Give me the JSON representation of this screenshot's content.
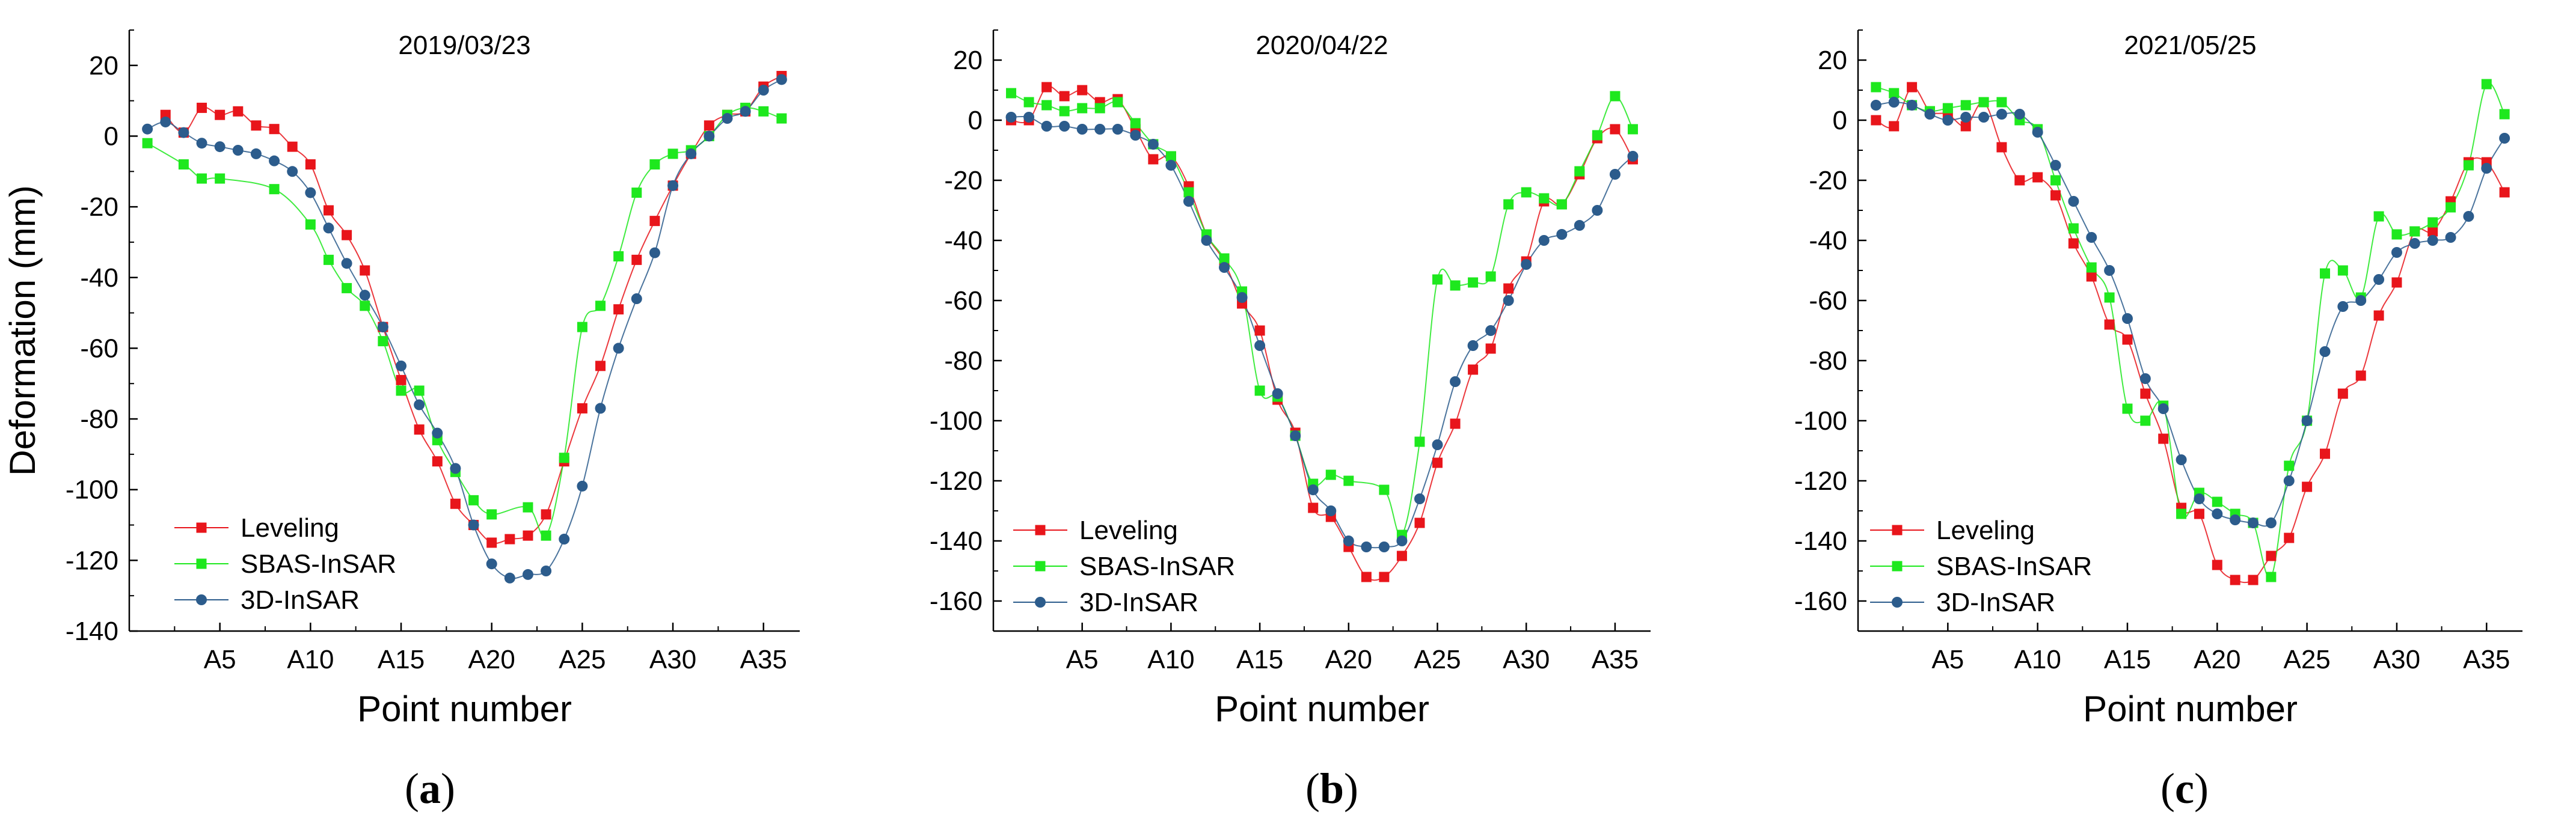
{
  "chart_data": [
    {
      "type": "line",
      "panel_label": "a",
      "title": "2019/03/23",
      "xlabel": "Point number",
      "ylabel": "Deformation (mm)",
      "xlim": [
        0,
        37
      ],
      "ylim": [
        -140,
        30
      ],
      "yticks": [
        20,
        0,
        -20,
        -40,
        -60,
        -80,
        -100,
        -120,
        -140
      ],
      "xticks": [
        5,
        10,
        15,
        20,
        25,
        30,
        35
      ],
      "xtick_labels": [
        "A5",
        "A10",
        "A15",
        "A20",
        "A25",
        "A30",
        "A35"
      ],
      "legend_position": "bottom-left",
      "series": [
        {
          "name": "Leveling",
          "color": "#e8151b",
          "marker": "square",
          "x": [
            2,
            3,
            4,
            5,
            6,
            7,
            8,
            9,
            10,
            11,
            12,
            13,
            14,
            15,
            16,
            17,
            18,
            19,
            20,
            21,
            22,
            23,
            24,
            25,
            26,
            27,
            28,
            29,
            30,
            31,
            32,
            33,
            34,
            35,
            36
          ],
          "values": [
            6,
            1,
            8,
            6,
            7,
            3,
            2,
            -3,
            -8,
            -21,
            -28,
            -38,
            -54,
            -69,
            -83,
            -92,
            -104,
            -110,
            -115,
            -114,
            -113,
            -107,
            -92,
            -77,
            -65,
            -49,
            -35,
            -24,
            -14,
            -5,
            3,
            6,
            7,
            14,
            17
          ]
        },
        {
          "name": "SBAS-InSAR",
          "color": "#1ee81e",
          "marker": "square",
          "x": [
            1,
            3,
            4,
            5,
            8,
            10,
            11,
            12,
            13,
            14,
            15,
            16,
            17,
            18,
            19,
            20,
            22,
            23,
            24,
            25,
            26,
            27,
            28,
            29,
            30,
            31,
            32,
            33,
            34,
            35,
            36
          ],
          "values": [
            -2,
            -8,
            -12,
            -12,
            -15,
            -25,
            -35,
            -43,
            -48,
            -58,
            -72,
            -72,
            -86,
            -95,
            -103,
            -107,
            -105,
            -113,
            -91,
            -54,
            -48,
            -34,
            -16,
            -8,
            -5,
            -4,
            0,
            6,
            8,
            7,
            5
          ]
        },
        {
          "name": "3D-InSAR",
          "color": "#2c5c8c",
          "marker": "circle",
          "x": [
            1,
            2,
            3,
            4,
            5,
            6,
            7,
            8,
            9,
            10,
            11,
            12,
            13,
            14,
            15,
            16,
            17,
            18,
            19,
            20,
            21,
            22,
            23,
            24,
            25,
            26,
            27,
            28,
            29,
            30,
            31,
            32,
            33,
            34,
            35,
            36
          ],
          "values": [
            2,
            4,
            1,
            -2,
            -3,
            -4,
            -5,
            -7,
            -10,
            -16,
            -26,
            -36,
            -45,
            -54,
            -65,
            -76,
            -84,
            -94,
            -110,
            -121,
            -125,
            -124,
            -123,
            -114,
            -99,
            -77,
            -60,
            -46,
            -33,
            -14,
            -5,
            0,
            5,
            7,
            13,
            16
          ]
        }
      ]
    },
    {
      "type": "line",
      "panel_label": "b",
      "title": "2020/04/22",
      "xlabel": "Point number",
      "ylabel": "",
      "xlim": [
        0,
        37
      ],
      "ylim": [
        -170,
        30
      ],
      "yticks": [
        20,
        0,
        -20,
        -40,
        -60,
        -80,
        -100,
        -120,
        -140,
        -160
      ],
      "xticks": [
        5,
        10,
        15,
        20,
        25,
        30,
        35
      ],
      "xtick_labels": [
        "A5",
        "A10",
        "A15",
        "A20",
        "A25",
        "A30",
        "A35"
      ],
      "legend_position": "bottom-left",
      "series": [
        {
          "name": "Leveling",
          "color": "#e8151b",
          "marker": "square",
          "x": [
            1,
            2,
            3,
            4,
            5,
            6,
            7,
            8,
            9,
            10,
            11,
            12,
            13,
            14,
            15,
            16,
            17,
            18,
            19,
            20,
            21,
            22,
            23,
            24,
            25,
            26,
            27,
            28,
            29,
            30,
            31,
            32,
            33,
            34,
            35,
            36
          ],
          "values": [
            0,
            0,
            11,
            8,
            10,
            6,
            7,
            -3,
            -13,
            -12,
            -22,
            -38,
            -47,
            -61,
            -70,
            -93,
            -104,
            -129,
            -132,
            -142,
            -152,
            -152,
            -145,
            -134,
            -114,
            -101,
            -83,
            -76,
            -56,
            -47,
            -27,
            -28,
            -18,
            -6,
            -3,
            -13
          ]
        },
        {
          "name": "SBAS-InSAR",
          "color": "#1ee81e",
          "marker": "square",
          "x": [
            1,
            2,
            3,
            4,
            5,
            6,
            7,
            8,
            9,
            10,
            11,
            12,
            13,
            14,
            15,
            16,
            17,
            18,
            19,
            20,
            22,
            23,
            24,
            25,
            26,
            27,
            28,
            29,
            30,
            31,
            32,
            33,
            34,
            35,
            36
          ],
          "values": [
            9,
            6,
            5,
            3,
            4,
            4,
            6,
            -1,
            -8,
            -12,
            -24,
            -38,
            -46,
            -57,
            -90,
            -92,
            -105,
            -121,
            -118,
            -120,
            -123,
            -138,
            -107,
            -53,
            -55,
            -54,
            -52,
            -28,
            -24,
            -26,
            -28,
            -17,
            -5,
            8,
            -3
          ]
        },
        {
          "name": "3D-InSAR",
          "color": "#2c5c8c",
          "marker": "circle",
          "x": [
            1,
            2,
            3,
            4,
            5,
            6,
            7,
            8,
            9,
            10,
            11,
            12,
            13,
            14,
            15,
            16,
            17,
            18,
            19,
            20,
            21,
            22,
            23,
            24,
            25,
            26,
            27,
            28,
            29,
            30,
            31,
            32,
            33,
            34,
            35,
            36
          ],
          "values": [
            1,
            1,
            -2,
            -2,
            -3,
            -3,
            -3,
            -5,
            -8,
            -15,
            -27,
            -40,
            -49,
            -59,
            -75,
            -91,
            -105,
            -123,
            -130,
            -140,
            -142,
            -142,
            -140,
            -126,
            -108,
            -87,
            -75,
            -70,
            -60,
            -48,
            -40,
            -38,
            -35,
            -30,
            -18,
            -12
          ]
        }
      ]
    },
    {
      "type": "line",
      "panel_label": "c",
      "title": "2021/05/25",
      "xlabel": "Point number",
      "ylabel": "",
      "xlim": [
        0,
        37
      ],
      "ylim": [
        -170,
        30
      ],
      "yticks": [
        20,
        0,
        -20,
        -40,
        -60,
        -80,
        -100,
        -120,
        -140,
        -160
      ],
      "xticks": [
        5,
        10,
        15,
        20,
        25,
        30,
        35
      ],
      "xtick_labels": [
        "A5",
        "A10",
        "A15",
        "A20",
        "A25",
        "A30",
        "A35"
      ],
      "legend_position": "bottom-left",
      "series": [
        {
          "name": "Leveling",
          "color": "#e8151b",
          "marker": "square",
          "x": [
            1,
            2,
            3,
            4,
            5,
            6,
            7,
            8,
            9,
            10,
            11,
            12,
            13,
            14,
            15,
            16,
            17,
            18,
            19,
            20,
            21,
            22,
            23,
            24,
            25,
            26,
            27,
            28,
            29,
            30,
            31,
            32,
            33,
            34,
            35,
            36
          ],
          "values": [
            0,
            -2,
            11,
            3,
            2,
            -2,
            6,
            -9,
            -20,
            -19,
            -25,
            -41,
            -52,
            -68,
            -73,
            -91,
            -106,
            -129,
            -131,
            -148,
            -153,
            -153,
            -145,
            -139,
            -122,
            -111,
            -91,
            -85,
            -65,
            -54,
            -37,
            -37,
            -27,
            -14,
            -14,
            -24
          ]
        },
        {
          "name": "SBAS-InSAR",
          "color": "#1ee81e",
          "marker": "square",
          "x": [
            1,
            2,
            3,
            4,
            5,
            6,
            7,
            8,
            9,
            10,
            11,
            12,
            13,
            14,
            15,
            16,
            17,
            18,
            19,
            20,
            21,
            22,
            23,
            24,
            25,
            26,
            27,
            28,
            29,
            30,
            31,
            32,
            33,
            34,
            35,
            36
          ],
          "values": [
            11,
            9,
            5,
            3,
            4,
            5,
            6,
            6,
            0,
            -3,
            -20,
            -36,
            -49,
            -59,
            -96,
            -100,
            -95,
            -131,
            -124,
            -127,
            -131,
            -134,
            -152,
            -115,
            -100,
            -51,
            -50,
            -59,
            -32,
            -38,
            -37,
            -34,
            -29,
            -15,
            12,
            2
          ]
        },
        {
          "name": "3D-InSAR",
          "color": "#2c5c8c",
          "marker": "circle",
          "x": [
            1,
            2,
            3,
            4,
            5,
            6,
            7,
            8,
            9,
            10,
            11,
            12,
            13,
            14,
            15,
            16,
            17,
            18,
            19,
            20,
            21,
            22,
            23,
            24,
            25,
            26,
            27,
            28,
            29,
            30,
            31,
            32,
            33,
            34,
            35,
            36
          ],
          "values": [
            5,
            6,
            5,
            2,
            0,
            1,
            1,
            2,
            2,
            -4,
            -15,
            -27,
            -39,
            -50,
            -66,
            -86,
            -96,
            -113,
            -126,
            -131,
            -133,
            -134,
            -134,
            -120,
            -100,
            -77,
            -62,
            -60,
            -53,
            -44,
            -41,
            -40,
            -39,
            -32,
            -16,
            -6
          ]
        }
      ]
    }
  ]
}
